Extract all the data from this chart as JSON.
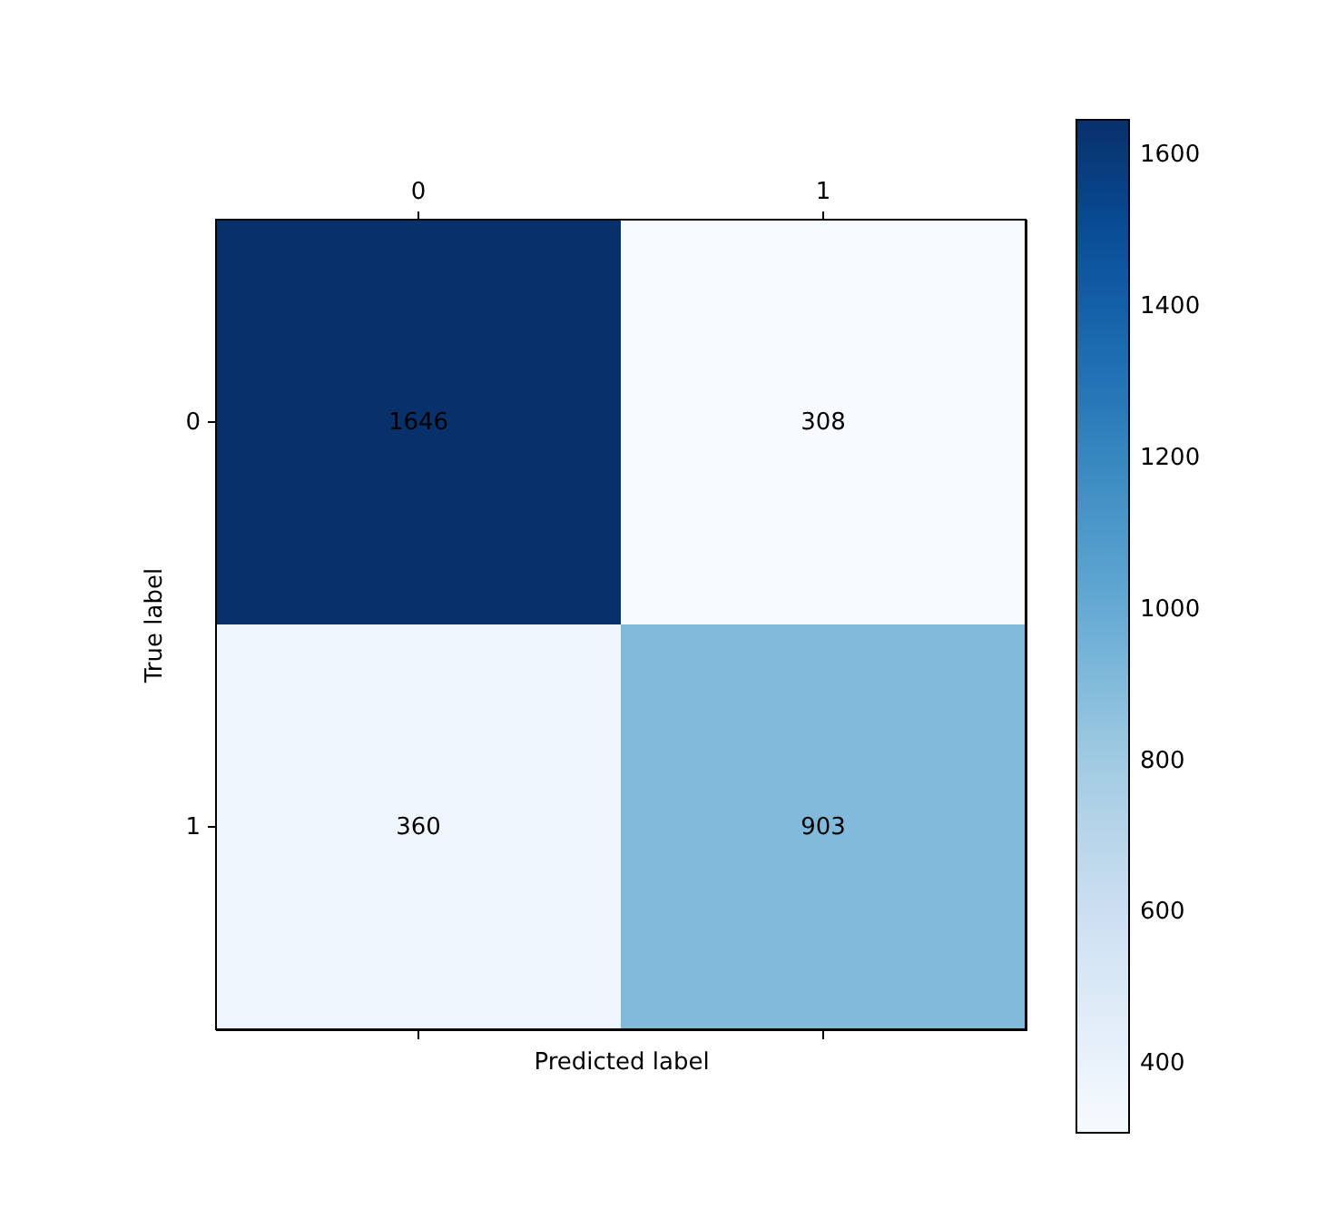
{
  "chart_data": {
    "type": "heatmap",
    "xlabel": "Predicted label",
    "ylabel": "True label",
    "categories": [
      "0",
      "1"
    ],
    "y_categories": [
      "0",
      "1"
    ],
    "cells": [
      [
        1646,
        308
      ],
      [
        360,
        903
      ]
    ],
    "clim": [
      308,
      1646
    ],
    "cticks": [
      400,
      600,
      800,
      1000,
      1200,
      1400,
      1600
    ],
    "data_labels": true
  }
}
